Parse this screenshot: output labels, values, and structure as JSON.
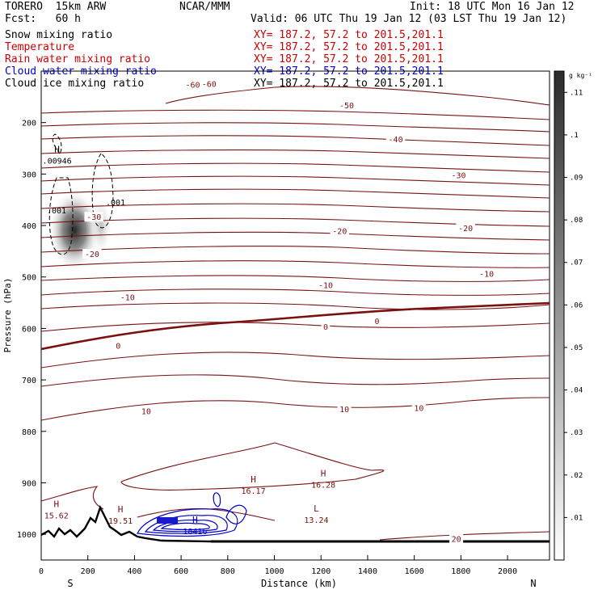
{
  "header": {
    "model": "TORERO  15km ARW",
    "center": "NCAR/MMM",
    "init": "Init: 18 UTC Mon 16 Jan 12",
    "fcst": "Fcst:   60 h",
    "valid": "Valid: 06 UTC Thu 19 Jan 12 (03 LST Thu 19 Jan 12)"
  },
  "fields": [
    {
      "name": "Snow mixing ratio",
      "xy": "XY= 187.2, 57.2 to 201.5,201.1",
      "color": "#000000"
    },
    {
      "name": "Temperature",
      "xy": "XY= 187.2, 57.2 to 201.5,201.1",
      "color": "#cc0000"
    },
    {
      "name": "Rain water mixing ratio",
      "xy": "XY= 187.2, 57.2 to 201.5,201.1",
      "color": "#cc0000"
    },
    {
      "name": "Cloud water mixing ratio",
      "xy": "XY= 187.2, 57.2 to 201.5,201.1",
      "color": "#0000cc"
    },
    {
      "name": "Cloud ice mixing ratio",
      "xy": "XY= 187.2, 57.2 to 201.5,201.1",
      "color": "#000000"
    }
  ],
  "chart_data": {
    "type": "cross-section contour",
    "xlabel": "Distance (km)",
    "ylabel": "Pressure (hPa)",
    "xlim": [
      0,
      2180
    ],
    "ylim": [
      1050,
      100
    ],
    "x_ticks": [
      0,
      200,
      400,
      600,
      800,
      1000,
      1200,
      1400,
      1600,
      1800,
      2000
    ],
    "y_ticks": [
      200,
      300,
      400,
      500,
      600,
      700,
      800,
      900,
      1000
    ],
    "x_end_labels": {
      "left": "S",
      "right": "N"
    },
    "temperature_isotherm_labels": [
      {
        "value": "-60",
        "x": 650,
        "p": 126
      },
      {
        "value": "-60",
        "x": 720,
        "p": 124
      },
      {
        "value": "-50",
        "x": 1310,
        "p": 166
      },
      {
        "value": "-40",
        "x": 1520,
        "p": 232
      },
      {
        "value": "-30",
        "x": 1790,
        "p": 302
      },
      {
        "value": "-30",
        "x": 226,
        "p": 383
      },
      {
        "value": "-20",
        "x": 1280,
        "p": 410
      },
      {
        "value": "-20",
        "x": 1820,
        "p": 405
      },
      {
        "value": "-20",
        "x": 218,
        "p": 455
      },
      {
        "value": "-10",
        "x": 1220,
        "p": 515
      },
      {
        "value": "-10",
        "x": 1910,
        "p": 493
      },
      {
        "value": "-10",
        "x": 370,
        "p": 539
      },
      {
        "value": "0",
        "x": 330,
        "p": 633
      },
      {
        "value": "0",
        "x": 1220,
        "p": 596
      },
      {
        "value": "0",
        "x": 1440,
        "p": 585
      },
      {
        "value": "10",
        "x": 450,
        "p": 760
      },
      {
        "value": "10",
        "x": 1300,
        "p": 756
      },
      {
        "value": "10",
        "x": 1620,
        "p": 754
      },
      {
        "value": "20",
        "x": 1780,
        "p": 1008
      }
    ],
    "extrema": [
      {
        "type": "H",
        "value": "15.62",
        "x": 65,
        "p": 960
      },
      {
        "type": "H",
        "value": "19.51",
        "x": 340,
        "p": 970
      },
      {
        "type": "H",
        "value": "16.17",
        "x": 910,
        "p": 912
      },
      {
        "type": "H",
        "value": "16.28",
        "x": 1210,
        "p": 900
      },
      {
        "type": "L",
        "value": "13.24",
        "x": 1180,
        "p": 968
      },
      {
        "type": "H",
        "value": "18416",
        "x": 660,
        "p": 990
      },
      {
        "type": "H",
        "value": ".00946",
        "x": 68,
        "p": 270
      }
    ],
    "ice_contour_labels": [
      ".001",
      ".001"
    ],
    "colorbar": {
      "unit": "g kg⁻¹",
      "min": 0.0,
      "max": 0.115,
      "ticks": [
        ".11",
        ".1",
        ".09",
        ".08",
        ".07",
        ".06",
        ".05",
        ".04",
        ".03",
        ".02",
        ".01"
      ]
    }
  }
}
